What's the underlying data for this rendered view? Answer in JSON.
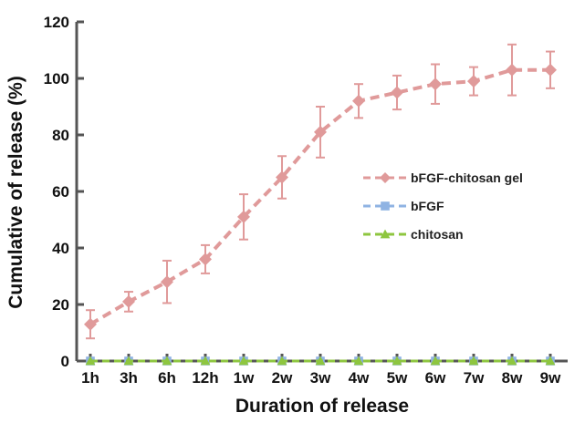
{
  "chart_data": {
    "type": "line",
    "title": "",
    "xlabel": "Duration of release",
    "ylabel": "Cumulative of release (%)",
    "categories": [
      "1h",
      "3h",
      "6h",
      "12h",
      "1w",
      "2w",
      "3w",
      "4w",
      "5w",
      "6w",
      "7w",
      "8w",
      "9w"
    ],
    "ylim": [
      0,
      120
    ],
    "yticks": [
      "0",
      "20",
      "40",
      "60",
      "80",
      "100",
      "120"
    ],
    "grid": false,
    "legend_position": "center-right",
    "series": [
      {
        "name": "bFGF-chitosan gel",
        "color": "#e09a9a",
        "marker": "diamond",
        "values": [
          13,
          21,
          28,
          36,
          51,
          65,
          81,
          92,
          95,
          98,
          99,
          103,
          103
        ],
        "error": [
          5,
          3.5,
          7.5,
          5,
          8,
          7.5,
          9,
          6,
          6,
          7,
          5,
          9,
          6.5
        ]
      },
      {
        "name": "bFGF",
        "color": "#8fb3e3",
        "marker": "square",
        "values": [
          0,
          0,
          0,
          0,
          0,
          0,
          0,
          0,
          0,
          0,
          0,
          0,
          0
        ]
      },
      {
        "name": "chitosan",
        "color": "#8ec63f",
        "marker": "triangle",
        "values": [
          0,
          0,
          0,
          0,
          0,
          0,
          0,
          0,
          0,
          0,
          0,
          0,
          0
        ]
      }
    ]
  }
}
